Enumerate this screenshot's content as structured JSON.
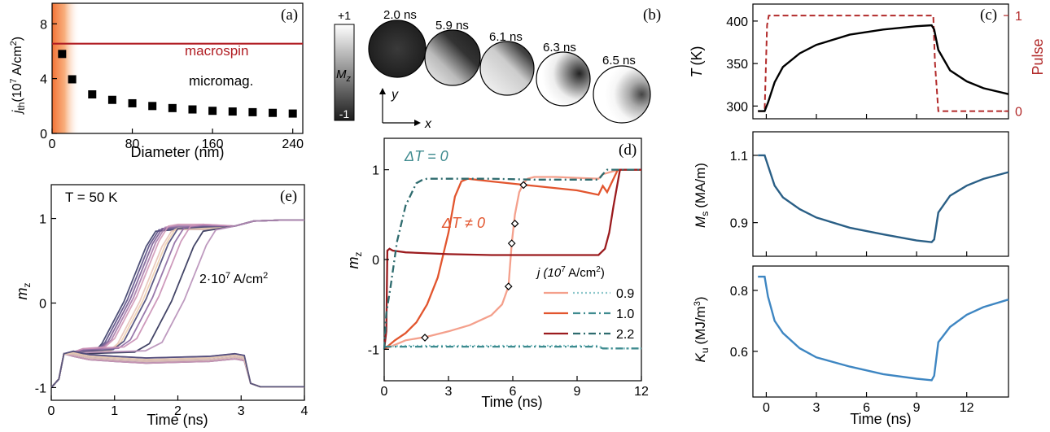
{
  "colors": {
    "macro": "#b01c22",
    "pulse": "#b22a2a",
    "ms": "#2a5f86",
    "ku": "#3e86c2"
  },
  "texts": {
    "a_label": "(a)",
    "b_label": "(b)",
    "c_label": "(c)",
    "d_label": "(d)",
    "e_label": "(e)",
    "macrospin": "macrospin",
    "micromag": "micromag.",
    "a_xlabel": "Diameter (nm)",
    "a_ylabel_main": "j",
    "a_ylabel_sub": "th",
    "a_ylabel_unit": "(10",
    "a_ylabel_exp": "7",
    "a_ylabel_rest": " A/cm",
    "a_ylabel_exp2": "2",
    "a_ylabel_close": ")",
    "time_ns": "Time (ns)",
    "cbar_top": "+1",
    "cbar_bot": "-1",
    "cbar_M": "M",
    "cbar_z": "z",
    "axis_x": "x",
    "axis_y": "y",
    "b_times": [
      "2.0 ns",
      "5.9 ns",
      "6.1 ns",
      "6.3 ns",
      "6.5 ns"
    ],
    "c_ylabel_T": "T",
    "c_ylabel_unit": "(K)",
    "c_ylabel_right": "Pulse",
    "ms_ylabel": "M",
    "ms_sub": "s",
    "ms_unit": "(MA/m)",
    "ku_ylabel": "K",
    "ku_sub": "u",
    "ku_unit": "(MJ/m",
    "ku_exp": "3",
    "ku_close": ")",
    "d_dT0": "ΔT = 0",
    "d_dTn0": "ΔT ≠ 0",
    "d_ylabel": "m",
    "d_ylabel_sub": "z",
    "d_legend_title": "j (10",
    "d_legend_exp": "7",
    "d_legend_rest": " A/cm",
    "d_legend_exp2": "2",
    "d_legend_close": ")",
    "d_legend_vals": [
      "0.9",
      "1.0",
      "2.2"
    ],
    "e_T": "T = 50 K",
    "e_j": "2·10",
    "e_j_exp": "7",
    "e_j_rest": " A/cm",
    "e_j_exp2": "2",
    "e_ylabel": "m",
    "e_ylabel_sub": "z"
  },
  "chart_data": [
    {
      "panel": "a",
      "type": "scatter",
      "x": [
        10,
        20,
        40,
        60,
        80,
        100,
        120,
        140,
        160,
        180,
        200,
        220,
        240
      ],
      "y": [
        5.8,
        3.95,
        2.85,
        2.45,
        2.2,
        2.0,
        1.85,
        1.75,
        1.65,
        1.6,
        1.55,
        1.5,
        1.45
      ],
      "macrospin_level": 6.55,
      "xlim": [
        0,
        250
      ],
      "ylim": [
        0,
        9.5
      ],
      "xticks": [
        0,
        80,
        160,
        240
      ],
      "yticks": [
        0,
        4,
        8
      ]
    },
    {
      "panel": "b",
      "type": "image-sequence",
      "times": [
        "2.0 ns",
        "5.9 ns",
        "6.1 ns",
        "6.3 ns",
        "6.5 ns"
      ],
      "colorbar": [
        -1,
        1
      ]
    },
    {
      "panel": "c",
      "type": "line",
      "x": [
        -0.5,
        -0.1,
        0.1,
        0.5,
        1,
        2,
        3,
        5,
        7,
        9,
        9.9,
        10.05,
        10.3,
        11,
        12,
        13,
        14.5
      ],
      "T": [
        294,
        294,
        304,
        328,
        346,
        362,
        372,
        384,
        390,
        394,
        395,
        390,
        366,
        342,
        329,
        321,
        314
      ],
      "pulse_x": [
        -0.5,
        -0.1,
        0.05,
        0.15,
        10.0,
        10.1,
        10.3,
        14.5
      ],
      "pulse": [
        0,
        0,
        0.9,
        1,
        1,
        0.5,
        0,
        0
      ],
      "xlim": [
        -0.8,
        14.5
      ],
      "ylim": [
        285,
        420
      ],
      "xticks": [
        0,
        3,
        6,
        9,
        12
      ],
      "yticks": [
        300,
        350,
        400
      ],
      "pulse_ticks": [
        0,
        1
      ]
    },
    {
      "panel": "Ms",
      "type": "line",
      "x": [
        -0.5,
        -0.1,
        0.1,
        0.5,
        1,
        2,
        3,
        5,
        7,
        9,
        9.9,
        10.05,
        10.3,
        11,
        12,
        13,
        14.5
      ],
      "y": [
        1.1,
        1.1,
        1.07,
        1.01,
        0.975,
        0.94,
        0.915,
        0.885,
        0.865,
        0.847,
        0.842,
        0.85,
        0.93,
        0.98,
        1.01,
        1.03,
        1.05
      ],
      "xlim": [
        -0.8,
        14.5
      ],
      "ylim": [
        0.8,
        1.17
      ],
      "yticks": [
        0.9,
        1.1
      ]
    },
    {
      "panel": "Ku",
      "type": "line",
      "x": [
        -0.5,
        -0.1,
        0.1,
        0.5,
        1,
        2,
        3,
        5,
        7,
        9,
        9.9,
        10.05,
        10.3,
        11,
        12,
        13,
        14.5
      ],
      "y": [
        0.845,
        0.845,
        0.78,
        0.7,
        0.66,
        0.61,
        0.58,
        0.55,
        0.525,
        0.51,
        0.505,
        0.52,
        0.63,
        0.68,
        0.72,
        0.745,
        0.77
      ],
      "xlim": [
        -0.8,
        14.5
      ],
      "ylim": [
        0.45,
        0.88
      ],
      "xticks": [
        0,
        3,
        6,
        9,
        12
      ],
      "yticks": [
        0.6,
        0.8
      ]
    },
    {
      "panel": "d",
      "type": "line",
      "xlim": [
        0,
        12
      ],
      "ylim": [
        -1.35,
        1.35
      ],
      "xticks": [
        0,
        3,
        6,
        9,
        12
      ],
      "yticks": [
        -1,
        0,
        1
      ],
      "series": [
        {
          "name": "0.9",
          "style": "solid",
          "color": "#f4a08c",
          "x": [
            0,
            1,
            2,
            3,
            4,
            5,
            5.5,
            5.8,
            5.95,
            6.1,
            6.3,
            6.5,
            6.7,
            7,
            8,
            9,
            10,
            10.2,
            10.5,
            10.8,
            11,
            12
          ],
          "y": [
            -1,
            -0.9,
            -0.86,
            -0.8,
            -0.73,
            -0.62,
            -0.5,
            -0.3,
            0.18,
            0.5,
            0.75,
            0.85,
            0.9,
            0.92,
            0.92,
            0.91,
            0.9,
            0.95,
            0.97,
            0.99,
            1,
            1
          ]
        },
        {
          "name": "1.0",
          "style": "solid",
          "color": "#e2552e",
          "x": [
            0,
            0.5,
            1,
            1.5,
            2,
            2.5,
            3,
            3.3,
            3.6,
            3.9,
            5,
            7,
            9,
            10,
            10.2,
            10.4,
            10.6,
            10.9,
            12
          ],
          "y": [
            -1,
            -0.9,
            -0.82,
            -0.7,
            -0.5,
            -0.2,
            0.3,
            0.7,
            0.87,
            0.9,
            0.87,
            0.82,
            0.77,
            0.72,
            0.82,
            0.75,
            0.85,
            1,
            1
          ]
        },
        {
          "name": "2.2",
          "style": "solid",
          "color": "#9b1b1e",
          "x": [
            0,
            0.1,
            0.15,
            0.25,
            0.4,
            1,
            3,
            5,
            7,
            9,
            10,
            10.3,
            10.5,
            10.7,
            11,
            12
          ],
          "y": [
            -1,
            -0.8,
            0.1,
            0.12,
            0.1,
            0.08,
            0.06,
            0.05,
            0.05,
            0.05,
            0.05,
            0.12,
            0.3,
            0.6,
            1,
            1
          ]
        },
        {
          "name": "0.9",
          "style": "dotted",
          "color": "#8ec8cc",
          "x": [
            0,
            1,
            10,
            10.2,
            12
          ],
          "y": [
            -0.97,
            -0.96,
            -0.96,
            -0.99,
            -0.99
          ]
        },
        {
          "name": "1.0",
          "style": "dashdot",
          "color": "#3f8b8f",
          "x": [
            0,
            1,
            9,
            10,
            10.2,
            12
          ],
          "y": [
            -0.97,
            -0.97,
            -0.97,
            -0.97,
            -0.99,
            -0.99
          ]
        },
        {
          "name": "2.2",
          "style": "dashdot",
          "color": "#2e6b6e",
          "x": [
            0,
            0.1,
            0.3,
            0.6,
            1,
            1.5,
            1.8,
            2,
            3,
            5,
            7,
            9,
            10,
            10.2,
            10.4,
            10.6,
            12
          ],
          "y": [
            -1,
            -0.6,
            -0.3,
            0.2,
            0.6,
            0.85,
            0.89,
            0.9,
            0.9,
            0.9,
            0.89,
            0.89,
            0.89,
            0.95,
            1,
            1,
            1
          ]
        }
      ],
      "markers": [
        {
          "x": 1.9,
          "y": -0.87
        },
        {
          "x": 5.8,
          "y": -0.3
        },
        {
          "x": 5.95,
          "y": 0.18
        },
        {
          "x": 6.1,
          "y": 0.4
        },
        {
          "x": 6.5,
          "y": 0.83
        }
      ]
    },
    {
      "panel": "e",
      "type": "line",
      "xlim": [
        0,
        4
      ],
      "ylim": [
        -1.15,
        1.4
      ],
      "xticks": [
        0,
        1,
        2,
        3,
        4
      ],
      "yticks": [
        -1,
        0,
        1
      ]
    }
  ]
}
